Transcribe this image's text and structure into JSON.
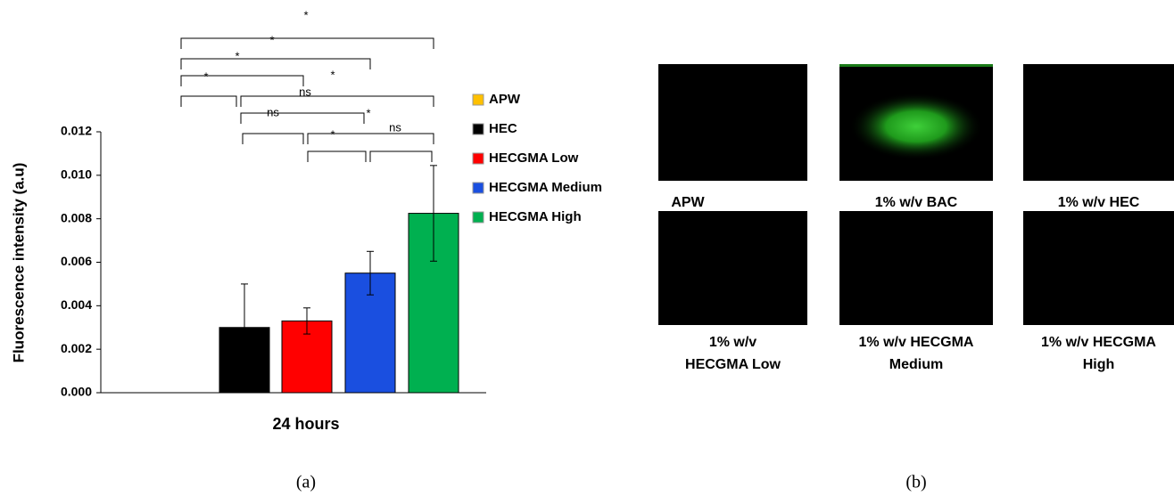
{
  "chart_data": {
    "type": "bar",
    "categories": [
      "24 hours"
    ],
    "y_label": "Fluorescence intensity (a.u)",
    "ylim": [
      0,
      0.012
    ],
    "yticks": [
      {
        "value": 0,
        "label": "0.000"
      },
      {
        "value": 0.002,
        "label": "0.002"
      },
      {
        "value": 0.004,
        "label": "0.004"
      },
      {
        "value": 0.006,
        "label": "0.006"
      },
      {
        "value": 0.008,
        "label": "0.008"
      },
      {
        "value": 0.01,
        "label": "0.010"
      },
      {
        "value": 0.012,
        "label": "0.012"
      }
    ],
    "series": [
      {
        "name": "APW",
        "color": "#ffc000",
        "values": [
          0
        ]
      },
      {
        "name": "HEC",
        "color": "#000000",
        "values": [
          0.003
        ],
        "errors": [
          0.002
        ]
      },
      {
        "name": "HECGMA Low",
        "color": "#ff0000",
        "values": [
          0.0033
        ],
        "errors": [
          0.0006
        ]
      },
      {
        "name": "HECGMA Medium",
        "color": "#1a4fe0",
        "values": [
          0.0055
        ],
        "errors": [
          0.001
        ]
      },
      {
        "name": "HECGMA High",
        "color": "#00b050",
        "values": [
          0.00825
        ],
        "errors": [
          0.0022
        ]
      }
    ],
    "annotations": [
      "*",
      "*",
      "*",
      "*",
      "*",
      "ns",
      "ns",
      "*",
      "*",
      "ns"
    ]
  },
  "panel_labels": [
    "(a)",
    "(b)"
  ],
  "images": [
    {
      "caption": [
        "APW"
      ]
    },
    {
      "caption": [
        "1% w/v BAC"
      ]
    },
    {
      "caption": [
        "1% w/v HEC"
      ]
    },
    {
      "caption": [
        "1% w/v",
        "HECGMA Low"
      ]
    },
    {
      "caption": [
        "1% w/v HECGMA",
        "Medium"
      ]
    },
    {
      "caption": [
        "1% w/v HECGMA",
        "High"
      ]
    }
  ]
}
